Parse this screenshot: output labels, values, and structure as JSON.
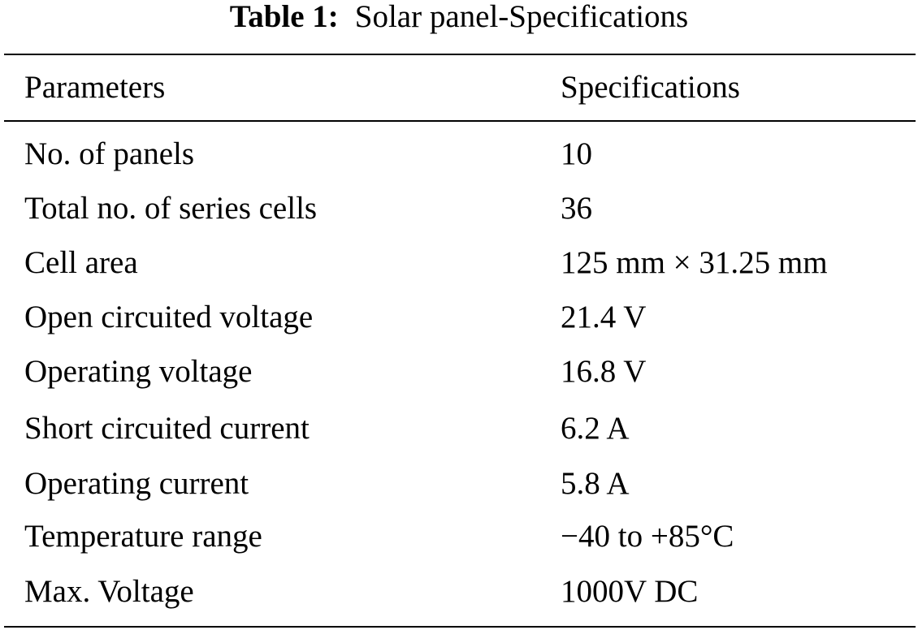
{
  "caption": {
    "label": "Table 1:",
    "text": "Solar panel-Specifications"
  },
  "table": {
    "headers": {
      "parameter": "Parameters",
      "specification": "Specifications"
    },
    "rows": [
      {
        "parameter": "No. of panels",
        "specification": "10"
      },
      {
        "parameter": "Total no. of series cells",
        "specification": "36"
      },
      {
        "parameter": "Cell area",
        "specification": "125 mm × 31.25 mm"
      },
      {
        "parameter": "Open circuited voltage",
        "specification": "21.4 V"
      },
      {
        "parameter": "Operating voltage",
        "specification": "16.8 V"
      },
      {
        "parameter": "Short circuited current",
        "specification": "6.2 A"
      },
      {
        "parameter": "Operating current",
        "specification": "5.8  A"
      },
      {
        "parameter": "Temperature range",
        "specification": "−40 to +85°C"
      },
      {
        "parameter": "Max. Voltage",
        "specification": "1000V DC"
      }
    ]
  }
}
